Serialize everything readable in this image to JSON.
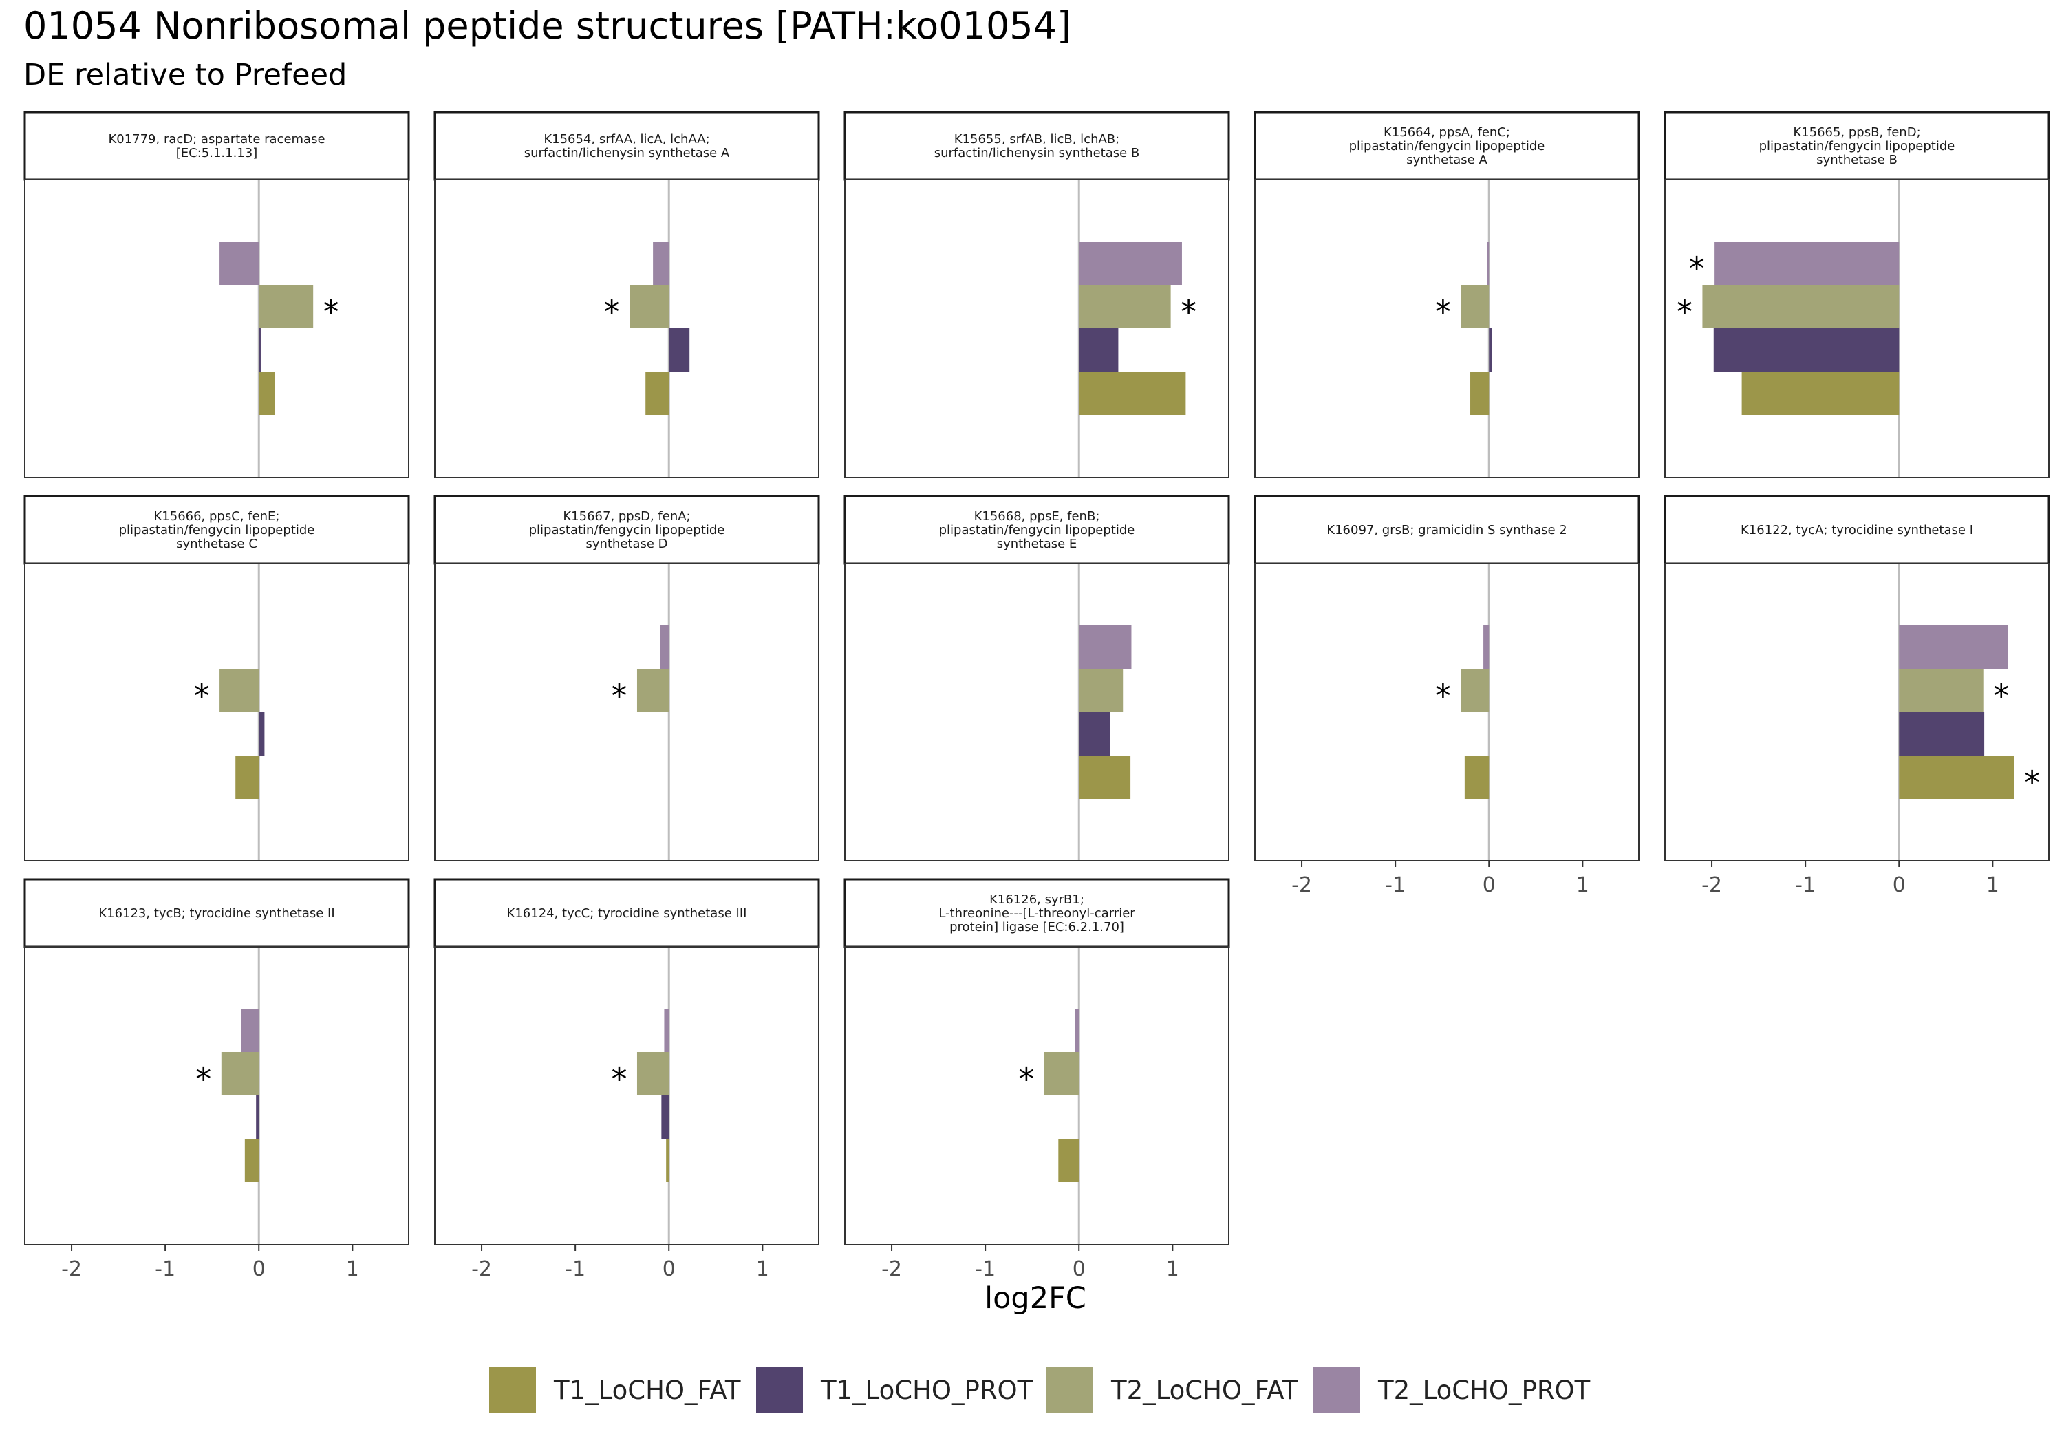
{
  "title": "01054 Nonribosomal peptide structures [PATH:ko01054]",
  "subtitle": "DE relative to Prefeed",
  "chart_data": {
    "type": "bar",
    "orientation": "horizontal",
    "facet_grid": "small multiples, 5 columns",
    "xlabel": "log2FC",
    "xlim": [
      -2.5,
      1.6
    ],
    "xticks": [
      -2,
      -1,
      0,
      1
    ],
    "xtick_labels": [
      "-2",
      "-1",
      "0",
      "1"
    ],
    "grid": false,
    "reference_line": 0,
    "legend_position": "bottom",
    "series": [
      {
        "name": "T1_LoCHO_FAT",
        "color": "#9c964a"
      },
      {
        "name": "T1_LoCHO_PROT",
        "color": "#52436e"
      },
      {
        "name": "T2_LoCHO_FAT",
        "color": "#a3a577"
      },
      {
        "name": "T2_LoCHO_PROT",
        "color": "#9a85a3"
      }
    ],
    "significance_marker": "*",
    "panels": [
      {
        "strip": [
          "K01779, racD; aspartate racemase",
          "[EC:5.1.1.13]"
        ],
        "values": {
          "T2_LoCHO_PROT": -0.42,
          "T2_LoCHO_FAT": 0.58,
          "T1_LoCHO_PROT": 0.02,
          "T1_LoCHO_FAT": 0.17
        },
        "significant": [
          "T2_LoCHO_FAT"
        ]
      },
      {
        "strip": [
          "K15654, srfAA, licA, lchAA;",
          "surfactin/lichenysin synthetase A"
        ],
        "values": {
          "T2_LoCHO_PROT": -0.17,
          "T2_LoCHO_FAT": -0.42,
          "T1_LoCHO_PROT": 0.22,
          "T1_LoCHO_FAT": -0.25
        },
        "significant": [
          "T2_LoCHO_FAT"
        ]
      },
      {
        "strip": [
          "K15655, srfAB, licB, lchAB;",
          "surfactin/lichenysin synthetase B"
        ],
        "values": {
          "T2_LoCHO_PROT": 1.1,
          "T2_LoCHO_FAT": 0.98,
          "T1_LoCHO_PROT": 0.42,
          "T1_LoCHO_FAT": 1.14
        },
        "significant": [
          "T2_LoCHO_FAT"
        ]
      },
      {
        "strip": [
          "K15664, ppsA, fenC;",
          "plipastatin/fengycin lipopeptide",
          "synthetase A"
        ],
        "values": {
          "T2_LoCHO_PROT": -0.02,
          "T2_LoCHO_FAT": -0.3,
          "T1_LoCHO_PROT": 0.03,
          "T1_LoCHO_FAT": -0.2
        },
        "significant": [
          "T2_LoCHO_FAT"
        ]
      },
      {
        "strip": [
          "K15665, ppsB, fenD;",
          "plipastatin/fengycin lipopeptide",
          "synthetase B"
        ],
        "values": {
          "T2_LoCHO_PROT": -1.97,
          "T2_LoCHO_FAT": -2.1,
          "T1_LoCHO_PROT": -1.98,
          "T1_LoCHO_FAT": -1.68
        },
        "significant": [
          "T2_LoCHO_PROT",
          "T2_LoCHO_FAT"
        ]
      },
      {
        "strip": [
          "K15666, ppsC, fenE;",
          "plipastatin/fengycin lipopeptide",
          "synthetase C"
        ],
        "values": {
          "T2_LoCHO_PROT": 0.0,
          "T2_LoCHO_FAT": -0.42,
          "T1_LoCHO_PROT": 0.06,
          "T1_LoCHO_FAT": -0.25
        },
        "significant": [
          "T2_LoCHO_FAT"
        ]
      },
      {
        "strip": [
          "K15667, ppsD, fenA;",
          "plipastatin/fengycin lipopeptide",
          "synthetase D"
        ],
        "values": {
          "T2_LoCHO_PROT": -0.09,
          "T2_LoCHO_FAT": -0.34,
          "T1_LoCHO_PROT": 0.0,
          "T1_LoCHO_FAT": 0.0
        },
        "significant": [
          "T2_LoCHO_FAT"
        ]
      },
      {
        "strip": [
          "K15668, ppsE, fenB;",
          "plipastatin/fengycin lipopeptide",
          "synthetase E"
        ],
        "values": {
          "T2_LoCHO_PROT": 0.56,
          "T2_LoCHO_FAT": 0.47,
          "T1_LoCHO_PROT": 0.33,
          "T1_LoCHO_FAT": 0.55
        },
        "significant": []
      },
      {
        "strip": [
          "K16097, grsB; gramicidin S synthase 2"
        ],
        "values": {
          "T2_LoCHO_PROT": -0.06,
          "T2_LoCHO_FAT": -0.3,
          "T1_LoCHO_PROT": 0.0,
          "T1_LoCHO_FAT": -0.26
        },
        "significant": [
          "T2_LoCHO_FAT"
        ]
      },
      {
        "strip": [
          "K16122, tycA; tyrocidine synthetase I"
        ],
        "values": {
          "T2_LoCHO_PROT": 1.16,
          "T2_LoCHO_FAT": 0.9,
          "T1_LoCHO_PROT": 0.91,
          "T1_LoCHO_FAT": 1.23
        },
        "significant": [
          "T2_LoCHO_FAT",
          "T1_LoCHO_FAT"
        ]
      },
      {
        "strip": [
          "K16123, tycB; tyrocidine synthetase II"
        ],
        "values": {
          "T2_LoCHO_PROT": -0.19,
          "T2_LoCHO_FAT": -0.4,
          "T1_LoCHO_PROT": -0.03,
          "T1_LoCHO_FAT": -0.15
        },
        "significant": [
          "T2_LoCHO_FAT"
        ]
      },
      {
        "strip": [
          "K16124, tycC; tyrocidine synthetase III"
        ],
        "values": {
          "T2_LoCHO_PROT": -0.05,
          "T2_LoCHO_FAT": -0.34,
          "T1_LoCHO_PROT": -0.08,
          "T1_LoCHO_FAT": -0.03
        },
        "significant": [
          "T2_LoCHO_FAT"
        ]
      },
      {
        "strip": [
          "K16126, syrB1;",
          "L-threonine---[L-threonyl-carrier",
          "protein] ligase [EC:6.2.1.70]"
        ],
        "values": {
          "T2_LoCHO_PROT": -0.04,
          "T2_LoCHO_FAT": -0.37,
          "T1_LoCHO_PROT": 0.0,
          "T1_LoCHO_FAT": -0.22
        },
        "significant": [
          "T2_LoCHO_FAT"
        ]
      }
    ]
  }
}
